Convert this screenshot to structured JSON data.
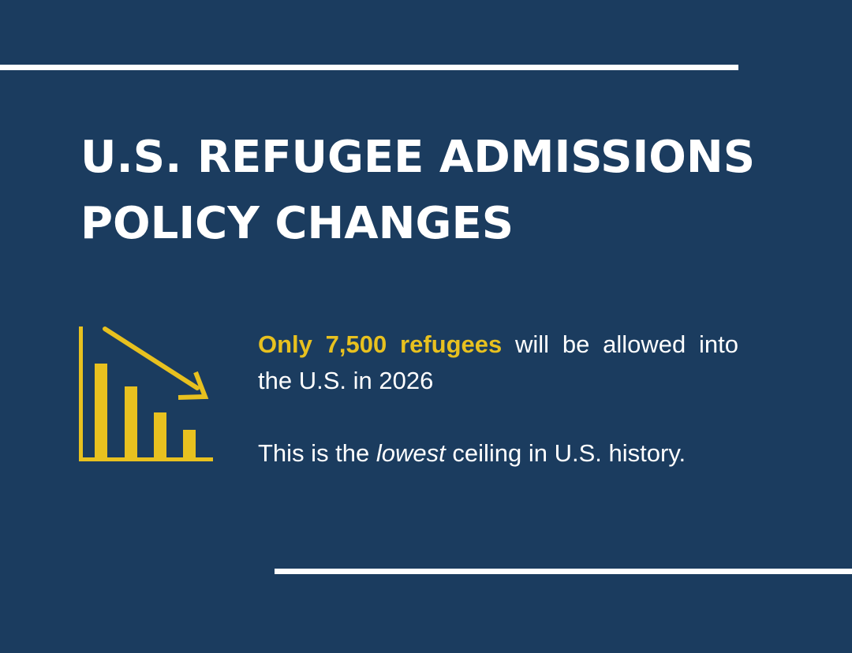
{
  "title": {
    "line1": "U.S. REFUGEE ADMISSIONS",
    "line2": "POLICY CHANGES"
  },
  "icon": "declining-bar-chart-icon",
  "statement": {
    "highlight": "Only 7,500 refugees",
    "rest": " will be allowed into the U.S. in 2026"
  },
  "note": {
    "before": "This is the ",
    "emphasis": "lowest",
    "after": " ceiling in U.S. history."
  },
  "colors": {
    "background": "#1b3c5f",
    "accent": "#e8c11f",
    "text": "#ffffff"
  }
}
